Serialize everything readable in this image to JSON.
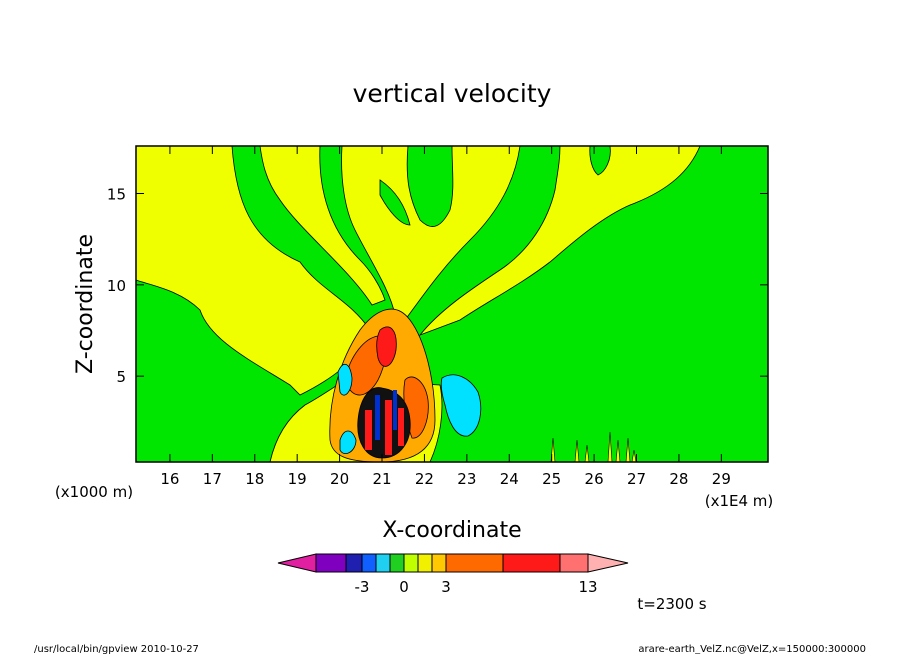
{
  "chart_data": {
    "type": "heatmap",
    "title": "vertical velocity",
    "xlabel": "X-coordinate",
    "ylabel": "Z-coordinate",
    "x_unit_left": "(x1000 m)",
    "x_unit_right": "(x1E4 m)",
    "xlim": [
      15.2,
      30.1
    ],
    "ylim": [
      0.3,
      17.6
    ],
    "x_ticks": [
      "16",
      "17",
      "18",
      "19",
      "20",
      "21",
      "22",
      "23",
      "24",
      "25",
      "26",
      "27",
      "28",
      "29"
    ],
    "y_ticks": [
      "5",
      "10",
      "15"
    ],
    "time_label": "t=2300 s",
    "colorbar": {
      "colors": [
        "#e020a0",
        "#8000c0",
        "#2020b0",
        "#1060ff",
        "#20d0f0",
        "#20d020",
        "#c0ff00",
        "#f0f000",
        "#ffc800",
        "#ff6a00",
        "#ff1a1a",
        "#ff7070",
        "#ffb0b0"
      ],
      "labels": [
        "-3",
        "0",
        "3",
        "13"
      ]
    },
    "colors": {
      "green": "#00e600",
      "yellow": "#f0ff00",
      "lightyellow": "#f8f800",
      "orange": "#ffaa00",
      "darkorange": "#ff6a00",
      "red": "#ff1a1a",
      "cyan": "#00e0ff",
      "blue": "#0030d0",
      "black": "#000000"
    }
  },
  "footer": {
    "left": "/usr/local/bin/gpview  2010-10-27",
    "right": "arare-earth_VelZ.nc@VelZ,x=150000:300000"
  }
}
